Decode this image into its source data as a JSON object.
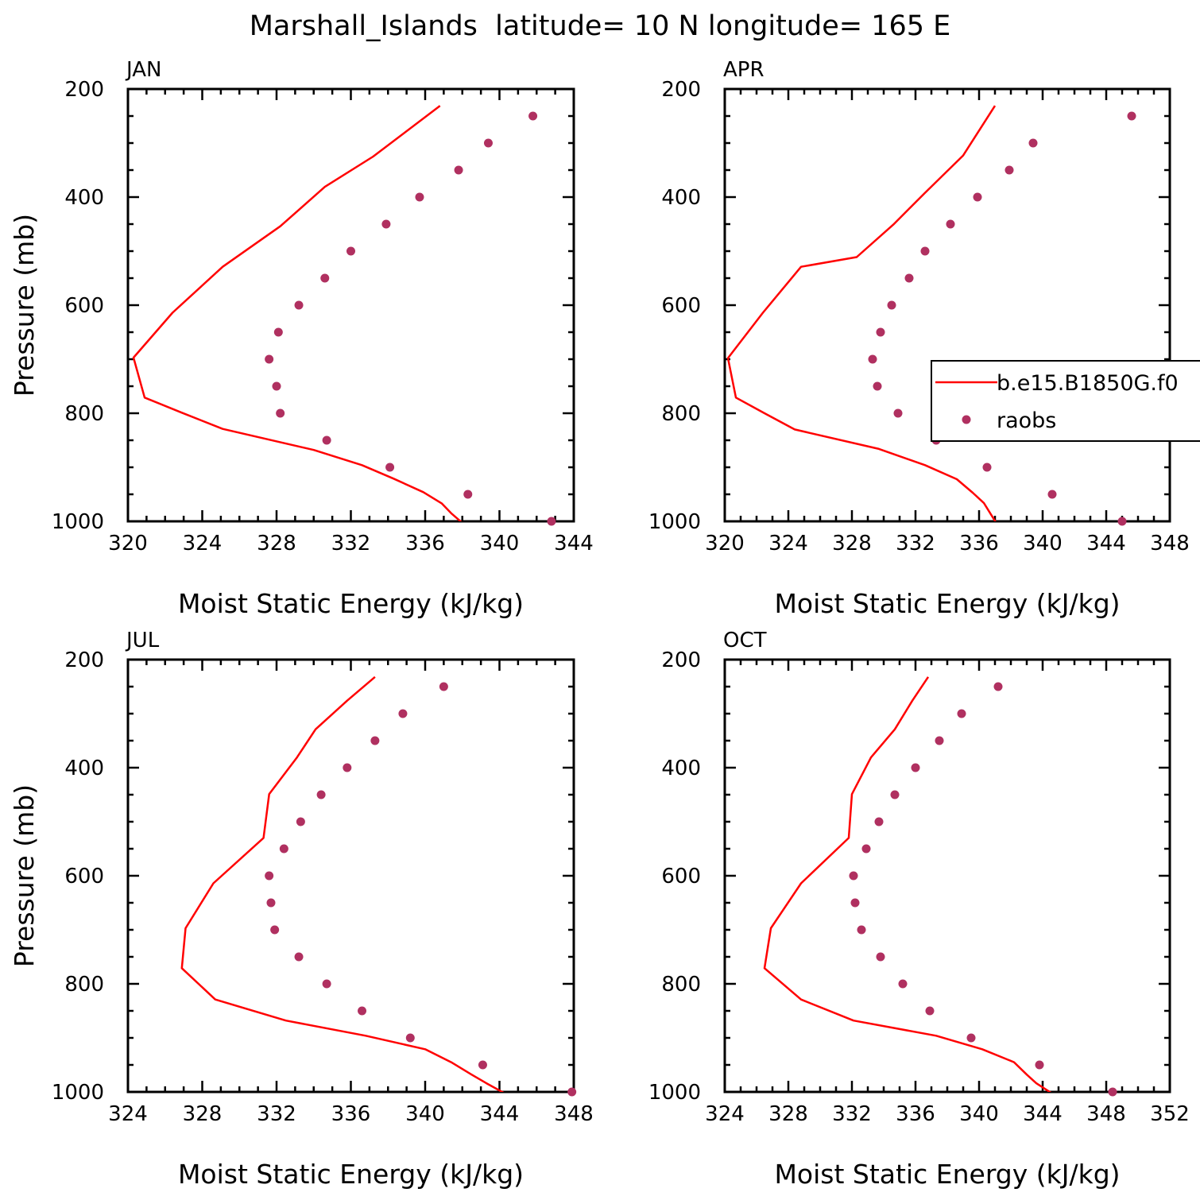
{
  "figure": {
    "title": "Marshall_Islands  latitude= 10 N longitude= 165 E",
    "colors": {
      "model_line": "#ff0000",
      "obs_marker": "#b03060",
      "frame": "#000000"
    },
    "legend": {
      "placement": "right-middle of APR panel",
      "line_label": "b.e15.B1850G.f0",
      "marker_label": "raobs"
    }
  },
  "chart_data": [
    {
      "type": "line",
      "panel": "JAN",
      "title": "JAN",
      "xlabel": "Moist Static Energy (kJ/kg)",
      "ylabel": "Pressure (mb)",
      "xlim": [
        320,
        344
      ],
      "ylim": [
        200,
        1000
      ],
      "y_inverted": true,
      "xticks": [
        320,
        324,
        328,
        332,
        336,
        340,
        344
      ],
      "yticks": [
        200,
        400,
        600,
        800,
        1000
      ],
      "series": [
        {
          "name": "b.e15.B1850G.f0",
          "style": "line",
          "x": [
            336.8,
            333.2,
            330.6,
            328.2,
            325.1,
            322.4,
            320.3,
            320.9,
            322.9,
            325.1,
            330.0,
            332.6,
            334.3,
            335.9,
            336.9,
            337.4,
            338.0
          ],
          "y": [
            231,
            325,
            381,
            454,
            529,
            614,
            697,
            771,
            799,
            829,
            868,
            896,
            921,
            946,
            967,
            985,
            1003
          ]
        },
        {
          "name": "raobs",
          "style": "markers",
          "x": [
            341.8,
            339.4,
            337.8,
            335.7,
            333.9,
            332.0,
            330.6,
            329.2,
            328.1,
            327.6,
            328.0,
            328.2,
            330.7,
            334.1,
            338.3,
            342.8
          ],
          "y": [
            250,
            300,
            350,
            400,
            450,
            500,
            550,
            600,
            650,
            700,
            750,
            800,
            850,
            900,
            950,
            1000
          ]
        }
      ]
    },
    {
      "type": "line",
      "panel": "APR",
      "title": "APR",
      "xlabel": "Moist Static Energy (kJ/kg)",
      "ylabel": "",
      "xlim": [
        320,
        348
      ],
      "ylim": [
        200,
        1000
      ],
      "y_inverted": true,
      "xticks": [
        320,
        324,
        328,
        332,
        336,
        340,
        344,
        348
      ],
      "yticks": [
        200,
        400,
        600,
        800,
        1000
      ],
      "series": [
        {
          "name": "b.e15.B1850G.f0",
          "style": "line",
          "x": [
            337.0,
            335.0,
            332.6,
            330.6,
            328.3,
            324.8,
            322.4,
            320.2,
            320.7,
            322.5,
            324.4,
            329.7,
            332.6,
            334.6,
            335.6,
            336.3,
            337.1
          ],
          "y": [
            231,
            323,
            392,
            451,
            511,
            529,
            614,
            698,
            771,
            800,
            830,
            866,
            896,
            922,
            947,
            966,
            1004
          ]
        },
        {
          "name": "raobs",
          "style": "markers",
          "x": [
            345.6,
            339.4,
            337.9,
            335.9,
            334.2,
            332.6,
            331.6,
            330.5,
            329.8,
            329.3,
            329.6,
            330.9,
            333.3,
            336.5,
            340.6,
            345.0
          ],
          "y": [
            250,
            300,
            350,
            400,
            450,
            500,
            550,
            600,
            650,
            700,
            750,
            800,
            850,
            900,
            950,
            1000
          ]
        }
      ]
    },
    {
      "type": "line",
      "panel": "JUL",
      "title": "JUL",
      "xlabel": "Moist Static Energy (kJ/kg)",
      "ylabel": "Pressure (mb)",
      "xlim": [
        324,
        348
      ],
      "ylim": [
        200,
        1000
      ],
      "y_inverted": true,
      "xticks": [
        324,
        328,
        332,
        336,
        340,
        344,
        348
      ],
      "yticks": [
        200,
        400,
        600,
        800,
        1000
      ],
      "series": [
        {
          "name": "b.e15.B1850G.f0",
          "style": "line",
          "x": [
            337.3,
            335.8,
            334.1,
            333.1,
            331.6,
            331.3,
            328.6,
            327.1,
            326.9,
            328.7,
            332.5,
            336.8,
            340.0,
            341.4,
            342.5,
            343.3,
            344.3
          ],
          "y": [
            232,
            276,
            329,
            381,
            449,
            530,
            614,
            697,
            771,
            829,
            868,
            896,
            921,
            945,
            968,
            984,
            1003
          ]
        },
        {
          "name": "raobs",
          "style": "markers",
          "x": [
            341.0,
            338.8,
            337.3,
            335.8,
            334.4,
            333.3,
            332.4,
            331.6,
            331.7,
            331.9,
            333.2,
            334.7,
            336.6,
            339.2,
            343.1,
            347.9
          ],
          "y": [
            250,
            300,
            350,
            400,
            450,
            500,
            550,
            600,
            650,
            700,
            750,
            800,
            850,
            900,
            950,
            1000
          ]
        }
      ]
    },
    {
      "type": "line",
      "panel": "OCT",
      "title": "OCT",
      "xlabel": "Moist Static Energy (kJ/kg)",
      "ylabel": "",
      "xlim": [
        324,
        352
      ],
      "ylim": [
        200,
        1000
      ],
      "y_inverted": true,
      "xticks": [
        324,
        328,
        332,
        336,
        340,
        344,
        348,
        352
      ],
      "yticks": [
        200,
        400,
        600,
        800,
        1000
      ],
      "series": [
        {
          "name": "b.e15.B1850G.f0",
          "style": "line",
          "x": [
            336.8,
            335.8,
            334.7,
            333.2,
            332.0,
            331.8,
            328.8,
            326.9,
            326.5,
            328.8,
            332.1,
            337.3,
            340.2,
            342.2,
            343.0,
            343.6,
            344.6
          ],
          "y": [
            232,
            276,
            329,
            381,
            449,
            530,
            614,
            697,
            771,
            829,
            868,
            896,
            921,
            945,
            968,
            984,
            1003
          ]
        },
        {
          "name": "raobs",
          "style": "markers",
          "x": [
            341.2,
            338.9,
            337.5,
            336.0,
            334.7,
            333.7,
            332.9,
            332.1,
            332.2,
            332.6,
            333.8,
            335.2,
            336.9,
            339.5,
            343.8,
            348.4
          ],
          "y": [
            250,
            300,
            350,
            400,
            450,
            500,
            550,
            600,
            650,
            700,
            750,
            800,
            850,
            900,
            950,
            1000
          ]
        }
      ]
    }
  ]
}
